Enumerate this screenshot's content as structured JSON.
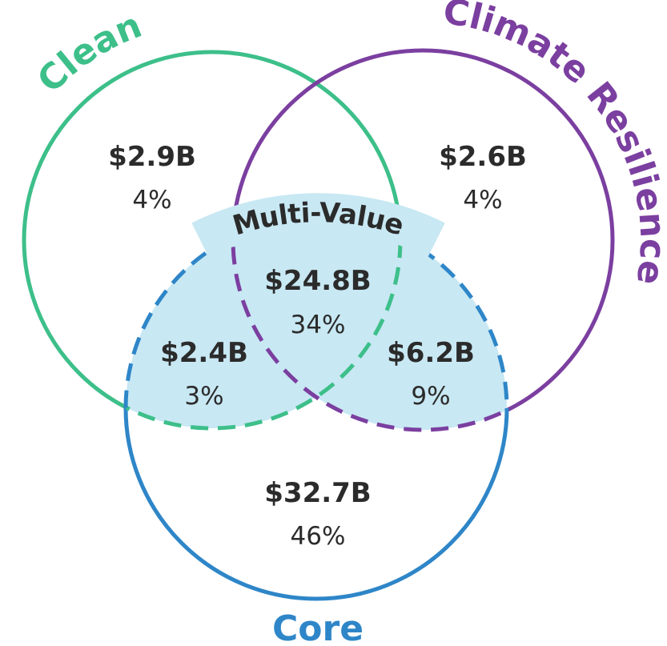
{
  "sets": [
    {
      "label": "Clean"
    },
    {
      "label": "Climate Resilience"
    },
    {
      "label": "Core"
    }
  ],
  "multi_value_label": "Multi-Value",
  "regions": [
    {
      "amount": "$2.9B",
      "share": "4%"
    },
    {
      "amount": "$2.6B",
      "share": "4%"
    },
    {
      "amount": "$24.8B",
      "share": "34%"
    },
    {
      "amount": "$2.4B",
      "share": "3%"
    },
    {
      "amount": "$6.2B",
      "share": "9%"
    },
    {
      "amount": "$32.7B",
      "share": "46%"
    }
  ]
}
